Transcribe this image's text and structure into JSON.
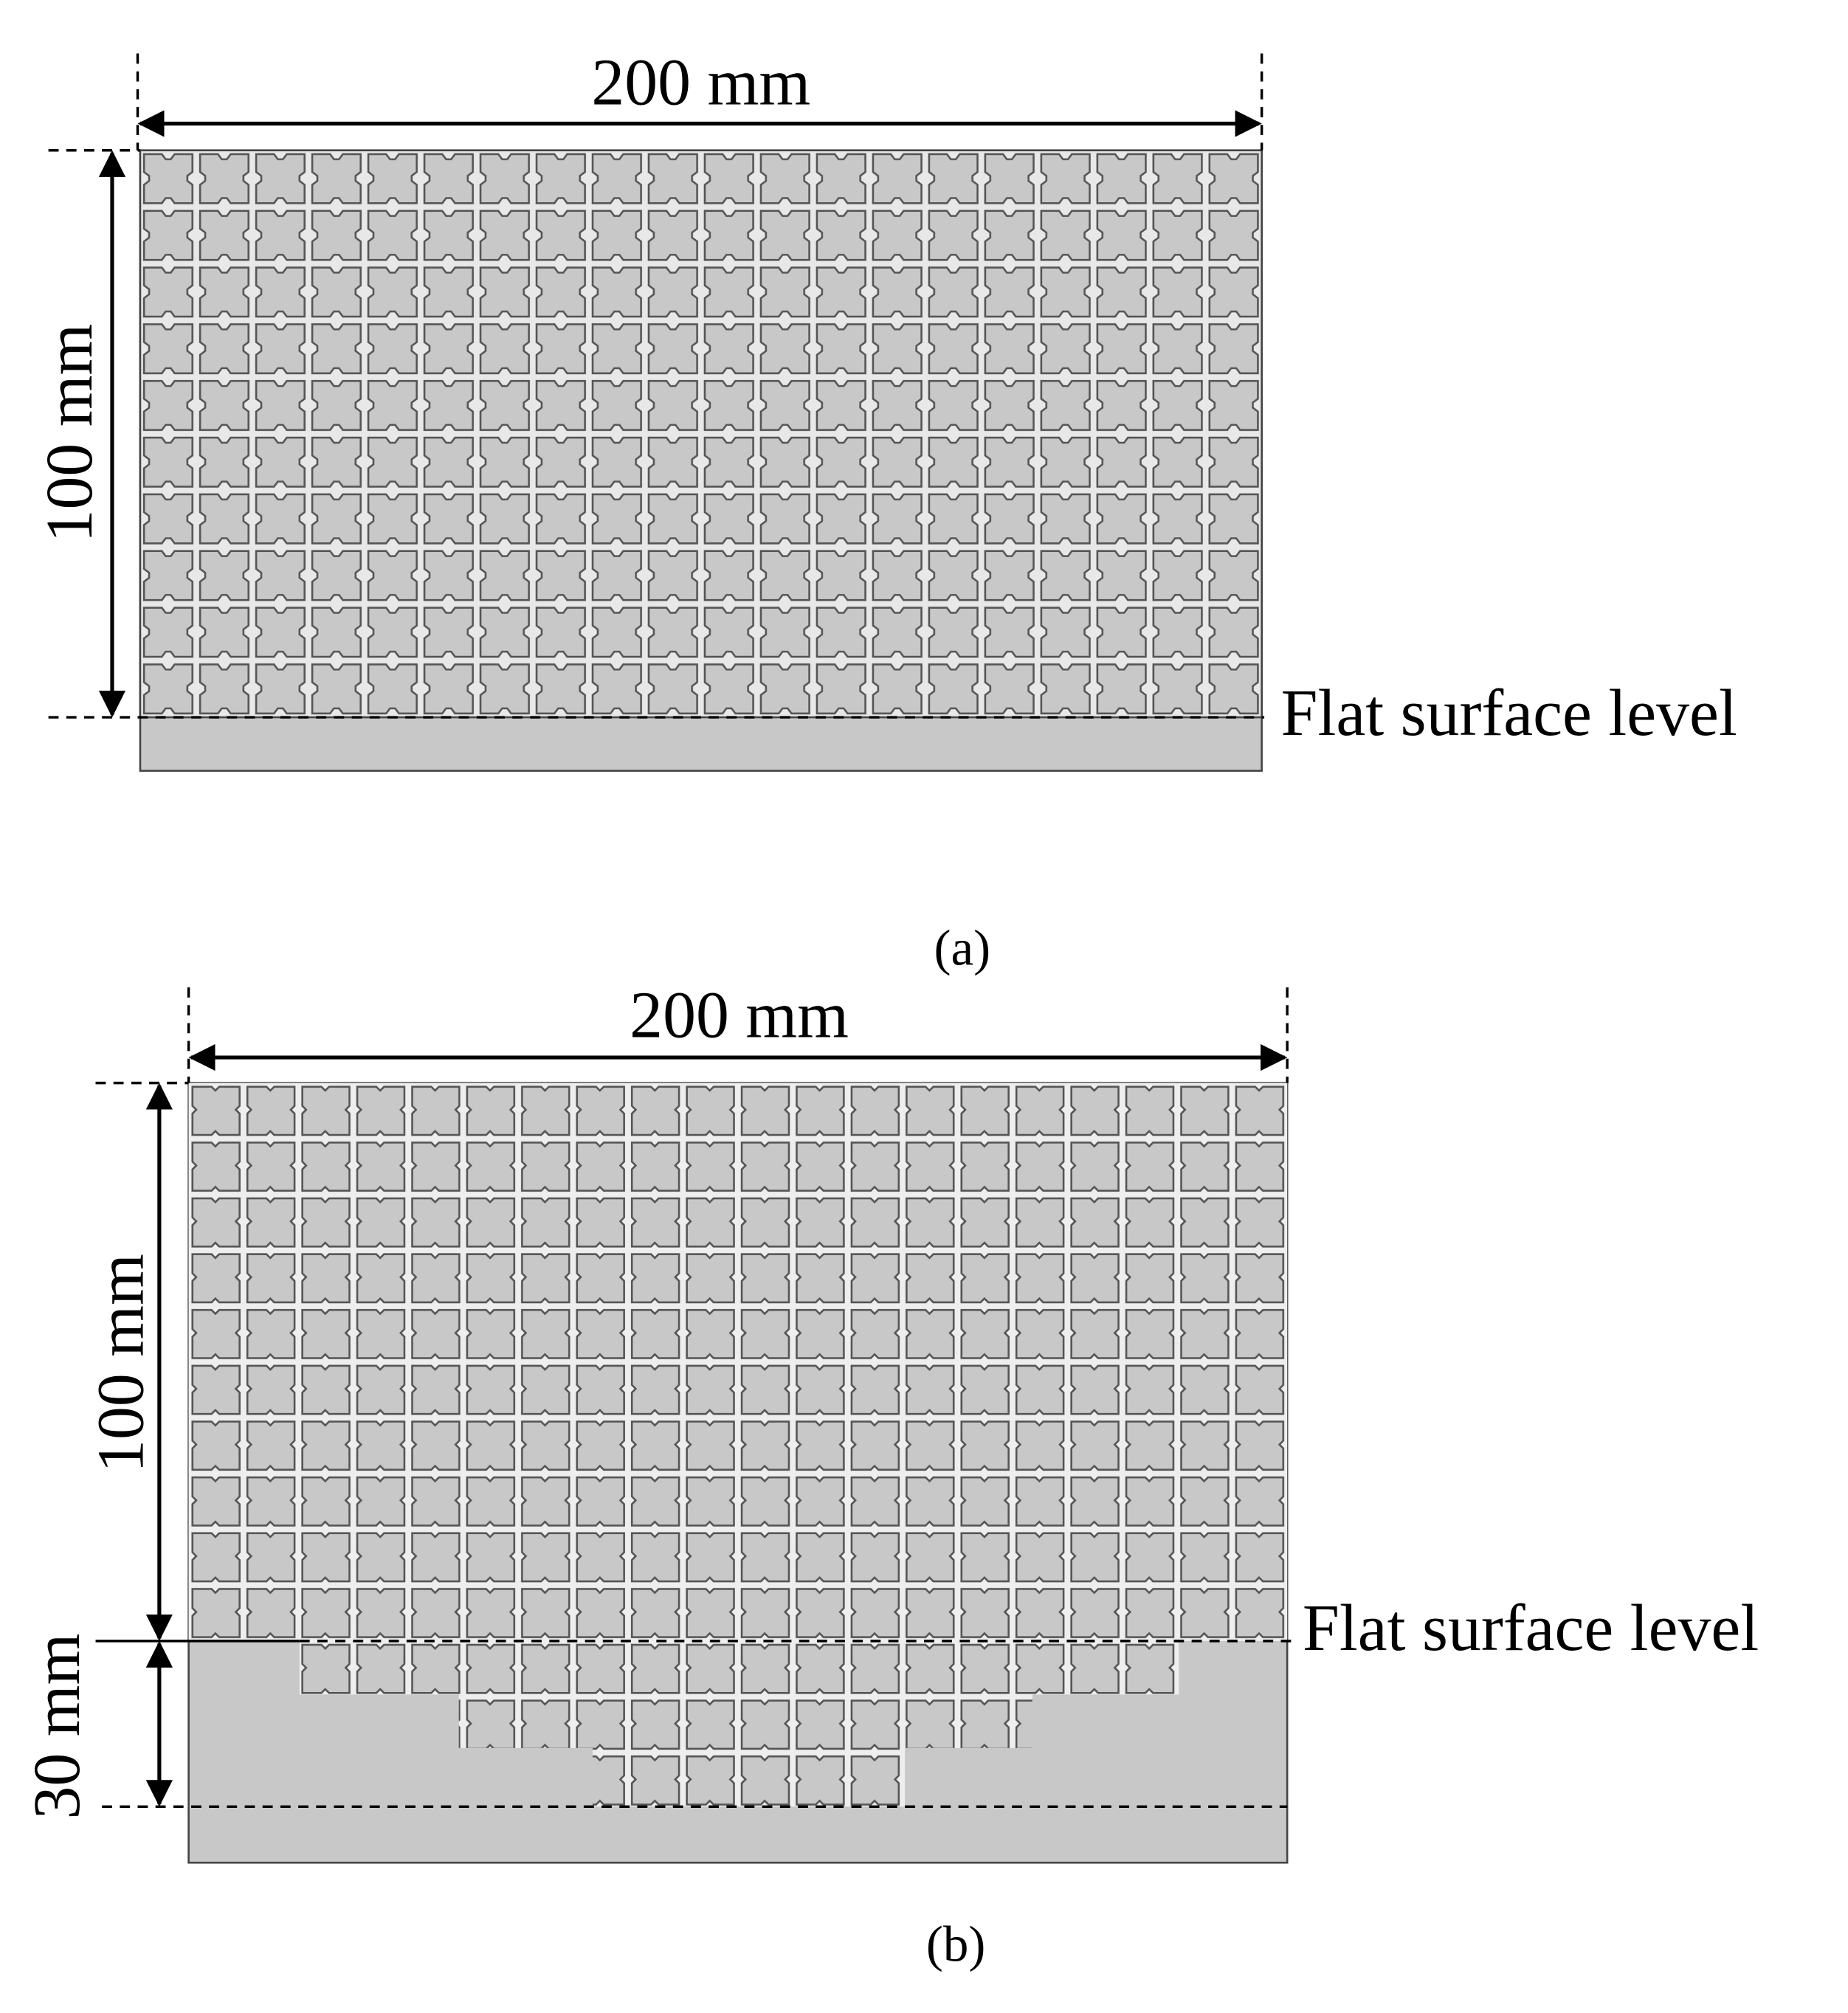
{
  "panel_a": {
    "width_label": "200 mm",
    "height_label": "100 mm",
    "surface_label": "Flat surface level",
    "caption": "(a)"
  },
  "panel_b": {
    "width_label": "200 mm",
    "height_label": "100 mm",
    "depth_label": "30 mm",
    "surface_label": "Flat surface level",
    "caption": "(b)"
  }
}
